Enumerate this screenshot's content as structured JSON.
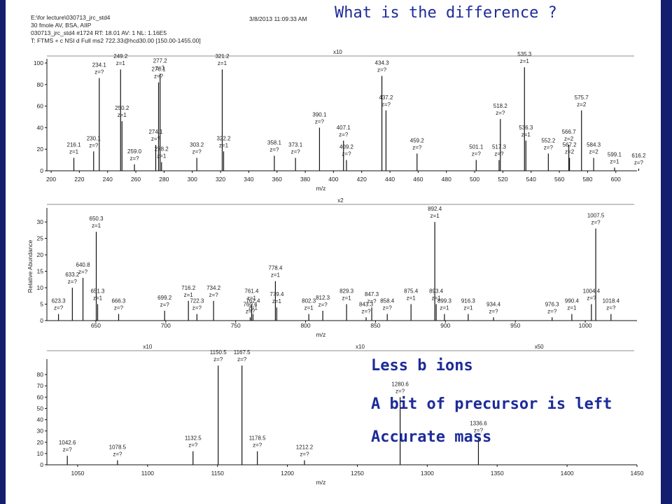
{
  "header": {
    "line1": "E:\\for lecture\\030713_jrc_std4",
    "line2": "30 fmole AV, BSA, AIIP",
    "line3": "030713_jrc_std4 #1724  RT: 18.01  AV: 1  NL: 1.16E5",
    "line4": "T: FTMS + c NSI d Full ms2 722.33@hcd30.00 [150.00-1455.00]",
    "timestamp": "3/8/2013 11:09:33 AM"
  },
  "slide": {
    "title": "What is the difference ?",
    "notes": [
      "Less b ions",
      "A bit of precursor is left",
      "Accurate mass"
    ]
  },
  "colors": {
    "background": "#141e6e",
    "text_accent": "#1d2b9a",
    "spectrum": "#111111"
  },
  "chart_data": [
    {
      "type": "bar",
      "ylabel": "",
      "xlabel": "m/z",
      "xlim": [
        197,
        615
      ],
      "ylim": [
        0,
        100
      ],
      "x_ticks": [
        200,
        220,
        240,
        260,
        280,
        300,
        320,
        340,
        360,
        380,
        400,
        420,
        440,
        460,
        480,
        500,
        520,
        540,
        560,
        580,
        600
      ],
      "y_ticks": [
        0,
        20,
        40,
        60,
        80,
        100
      ],
      "zoom_labels": [
        {
          "text": "x10",
          "x": 403
        }
      ],
      "peaks": [
        {
          "mz": 216.1,
          "y": 12,
          "label": [
            "216.1",
            "z=1"
          ]
        },
        {
          "mz": 230.1,
          "y": 18,
          "label": [
            "230.1",
            "z=?"
          ]
        },
        {
          "mz": 234.1,
          "y": 86,
          "label": [
            "234.1",
            "z=?"
          ]
        },
        {
          "mz": 249.2,
          "y": 94,
          "label": [
            "249.2",
            "z=1"
          ]
        },
        {
          "mz": 250.2,
          "y": 46,
          "label": [
            "250.2",
            "z=1"
          ]
        },
        {
          "mz": 259.0,
          "y": 6,
          "label": [
            "259.0",
            "z=?"
          ]
        },
        {
          "mz": 274.1,
          "y": 24,
          "label": [
            "274.1",
            "z=?"
          ]
        },
        {
          "mz": 276.1,
          "y": 82,
          "label": [
            "276.1",
            "z=?"
          ]
        },
        {
          "mz": 277.2,
          "y": 90,
          "label": [
            "277.2",
            "z=1"
          ]
        },
        {
          "mz": 278.2,
          "y": 8,
          "label": [
            "278.2",
            "z=1"
          ]
        },
        {
          "mz": 303.2,
          "y": 12,
          "label": [
            "303.2",
            "z=?"
          ]
        },
        {
          "mz": 321.2,
          "y": 94,
          "label": [
            "321.2",
            "z=1"
          ]
        },
        {
          "mz": 322.2,
          "y": 18,
          "label": [
            "322.2",
            "z=1"
          ]
        },
        {
          "mz": 358.1,
          "y": 14,
          "label": [
            "358.1",
            "z=?"
          ]
        },
        {
          "mz": 373.1,
          "y": 12,
          "label": [
            "373.1",
            "z=?"
          ]
        },
        {
          "mz": 390.1,
          "y": 40,
          "label": [
            "390.1",
            "z=?"
          ]
        },
        {
          "mz": 407.1,
          "y": 28,
          "label": [
            "407.1",
            "z=?"
          ]
        },
        {
          "mz": 409.2,
          "y": 10,
          "label": [
            "409.2",
            "z=?"
          ]
        },
        {
          "mz": 434.3,
          "y": 88,
          "label": [
            "434.3",
            "z=?"
          ]
        },
        {
          "mz": 437.2,
          "y": 56,
          "label": [
            "437.2",
            "z=?"
          ]
        },
        {
          "mz": 459.2,
          "y": 16,
          "label": [
            "459.2",
            "z=?"
          ]
        },
        {
          "mz": 501.1,
          "y": 10,
          "label": [
            "501.1",
            "z=?"
          ]
        },
        {
          "mz": 517.3,
          "y": 10,
          "label": [
            "517.3",
            "z=?"
          ]
        },
        {
          "mz": 518.2,
          "y": 48,
          "label": [
            "518.2",
            "z=?"
          ]
        },
        {
          "mz": 535.3,
          "y": 96,
          "label": [
            "535.3",
            "z=1"
          ]
        },
        {
          "mz": 536.3,
          "y": 28,
          "label": [
            "536.3",
            "z=1"
          ]
        },
        {
          "mz": 552.2,
          "y": 16,
          "label": [
            "552.2",
            "z=?"
          ]
        },
        {
          "mz": 566.7,
          "y": 24,
          "label": [
            "566.7",
            "z=2"
          ]
        },
        {
          "mz": 567.2,
          "y": 12,
          "label": [
            "567.2",
            "z=2"
          ]
        },
        {
          "mz": 575.7,
          "y": 56,
          "label": [
            "575.7",
            "z=2"
          ]
        },
        {
          "mz": 584.3,
          "y": 12,
          "label": [
            "584.3",
            "z=2"
          ]
        },
        {
          "mz": 599.1,
          "y": 3,
          "label": [
            "599.1",
            "z=1"
          ]
        },
        {
          "mz": 616.2,
          "y": 2,
          "label": [
            "616.2",
            "z=?"
          ]
        }
      ]
    },
    {
      "type": "bar",
      "ylabel": "Relative Abundance",
      "xlabel": "m/z",
      "xlim": [
        615,
        1037
      ],
      "ylim": [
        0,
        33
      ],
      "x_ticks": [
        650,
        700,
        750,
        800,
        850,
        900,
        950,
        1000
      ],
      "y_ticks": [
        0,
        5,
        10,
        15,
        20,
        25,
        30
      ],
      "zoom_labels": [
        {
          "text": "x2",
          "x": 825
        }
      ],
      "peaks": [
        {
          "mz": 623.3,
          "y": 2,
          "label": [
            "623.3",
            "z=?"
          ]
        },
        {
          "mz": 633.2,
          "y": 10,
          "label": [
            "633.2",
            "z=?"
          ]
        },
        {
          "mz": 640.8,
          "y": 13,
          "label": [
            "640.8",
            "z=?"
          ]
        },
        {
          "mz": 650.3,
          "y": 27,
          "label": [
            "650.3",
            "z=1"
          ]
        },
        {
          "mz": 651.3,
          "y": 5,
          "label": [
            "651.3",
            "z=1"
          ]
        },
        {
          "mz": 666.3,
          "y": 2,
          "label": [
            "666.3",
            "z=?"
          ]
        },
        {
          "mz": 699.2,
          "y": 3,
          "label": [
            "699.2",
            "z=?"
          ]
        },
        {
          "mz": 716.2,
          "y": 6,
          "label": [
            "716.2",
            "z=1"
          ]
        },
        {
          "mz": 722.3,
          "y": 2,
          "label": [
            "722.3",
            "z=?"
          ]
        },
        {
          "mz": 734.2,
          "y": 6,
          "label": [
            "734.2",
            "z=?"
          ]
        },
        {
          "mz": 760.4,
          "y": 1,
          "label": [
            "760.4",
            "z=?"
          ]
        },
        {
          "mz": 761.4,
          "y": 5,
          "label": [
            "761.4",
            "z=1"
          ]
        },
        {
          "mz": 762.4,
          "y": 2,
          "label": [
            "762.4",
            "z=1"
          ]
        },
        {
          "mz": 778.4,
          "y": 12,
          "label": [
            "778.4",
            "z=1"
          ]
        },
        {
          "mz": 779.4,
          "y": 4,
          "label": [
            "779.4",
            "z=1"
          ]
        },
        {
          "mz": 802.3,
          "y": 2,
          "label": [
            "802.3",
            "z=1"
          ]
        },
        {
          "mz": 812.3,
          "y": 3,
          "label": [
            "812.3",
            "z=?"
          ]
        },
        {
          "mz": 829.3,
          "y": 5,
          "label": [
            "829.3",
            "z=1"
          ]
        },
        {
          "mz": 843.3,
          "y": 1,
          "label": [
            "843.3",
            "z=?"
          ]
        },
        {
          "mz": 847.3,
          "y": 4,
          "label": [
            "847.3",
            "z=?"
          ]
        },
        {
          "mz": 858.4,
          "y": 2,
          "label": [
            "858.4",
            "z=?"
          ]
        },
        {
          "mz": 875.4,
          "y": 5,
          "label": [
            "875.4",
            "z=1"
          ]
        },
        {
          "mz": 892.4,
          "y": 30,
          "label": [
            "892.4",
            "z=1"
          ]
        },
        {
          "mz": 893.4,
          "y": 5,
          "label": [
            "893.4",
            "z=1"
          ]
        },
        {
          "mz": 899.3,
          "y": 2,
          "label": [
            "899.3",
            "z=1"
          ]
        },
        {
          "mz": 916.3,
          "y": 2,
          "label": [
            "916.3",
            "z=1"
          ]
        },
        {
          "mz": 934.4,
          "y": 1,
          "label": [
            "934.4",
            "z=?"
          ]
        },
        {
          "mz": 976.3,
          "y": 1,
          "label": [
            "976.3",
            "z=?"
          ]
        },
        {
          "mz": 990.4,
          "y": 2,
          "label": [
            "990.4",
            "z=1"
          ]
        },
        {
          "mz": 1004.4,
          "y": 5,
          "label": [
            "1004.4",
            "z=?"
          ]
        },
        {
          "mz": 1007.5,
          "y": 28,
          "label": [
            "1007.5",
            "z=?"
          ]
        },
        {
          "mz": 1018.4,
          "y": 2,
          "label": [
            "1018.4",
            "z=?"
          ]
        }
      ]
    },
    {
      "type": "bar",
      "ylabel": "",
      "xlabel": "m/z",
      "xlim": [
        1028,
        1450
      ],
      "ylim": [
        0,
        90
      ],
      "x_ticks": [
        1050,
        1100,
        1150,
        1200,
        1250,
        1300,
        1350,
        1400,
        1450
      ],
      "y_ticks": [
        0,
        10,
        20,
        30,
        40,
        50,
        60,
        70,
        80
      ],
      "zoom_labels": [
        {
          "text": "x10",
          "x": 1100
        },
        {
          "text": "x10",
          "x": 1252
        },
        {
          "text": "x50",
          "x": 1380
        }
      ],
      "peaks": [
        {
          "mz": 1042.6,
          "y": 8,
          "label": [
            "1042.6",
            "z=?"
          ]
        },
        {
          "mz": 1078.5,
          "y": 4,
          "label": [
            "1078.5",
            "z=?"
          ]
        },
        {
          "mz": 1132.5,
          "y": 12,
          "label": [
            "1132.5",
            "z=?"
          ]
        },
        {
          "mz": 1150.5,
          "y": 88,
          "label": [
            "1150.5",
            "z=?"
          ]
        },
        {
          "mz": 1167.5,
          "y": 88,
          "label": [
            "1167.5",
            "z=?"
          ]
        },
        {
          "mz": 1178.5,
          "y": 12,
          "label": [
            "1178.5",
            "z=?"
          ]
        },
        {
          "mz": 1212.2,
          "y": 4,
          "label": [
            "1212.2",
            "z=?"
          ]
        },
        {
          "mz": 1280.6,
          "y": 60,
          "label": [
            "1280.6",
            "z=?"
          ]
        },
        {
          "mz": 1336.6,
          "y": 25,
          "label": [
            "1336.6",
            "z=?"
          ]
        }
      ]
    }
  ]
}
